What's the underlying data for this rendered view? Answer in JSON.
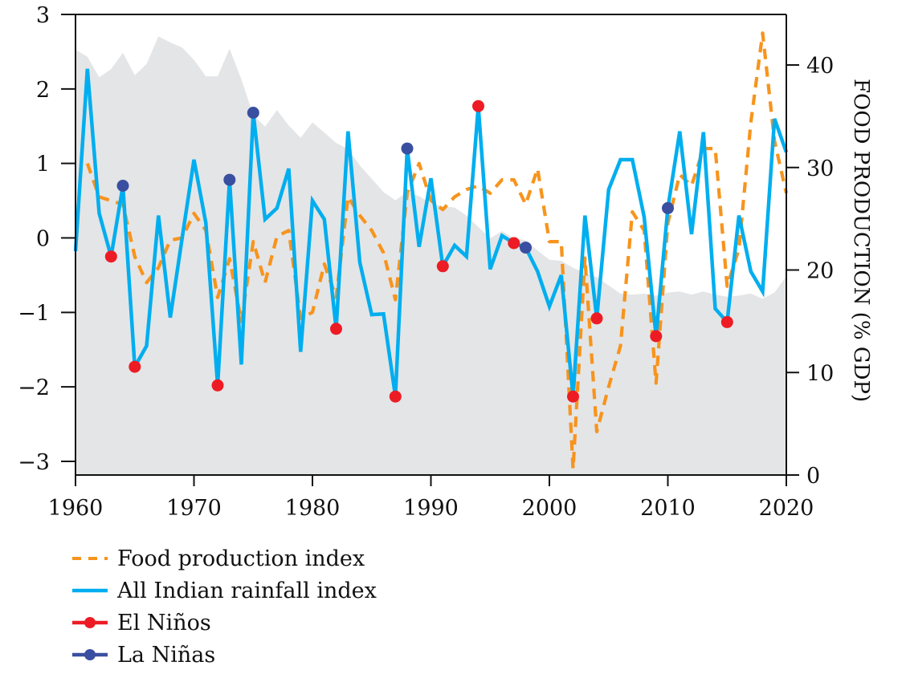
{
  "chart_data": {
    "type": "line",
    "title": "",
    "xlabel": "",
    "ylabel": "",
    "y2label": "FOOD PRODUCTION (% GDP)",
    "xlim": [
      1960,
      2020
    ],
    "ylim": [
      -3.2,
      3
    ],
    "y2lim": [
      0,
      45
    ],
    "x_ticks": [
      1960,
      1970,
      1980,
      1990,
      2000,
      2010,
      2020
    ],
    "y_ticks": [
      -3,
      -2,
      -1,
      0,
      1,
      2,
      3
    ],
    "y2_ticks": [
      0,
      10,
      20,
      30,
      40
    ],
    "x_tick_labels": [
      "1960",
      "1970",
      "1980",
      "1990",
      "2000",
      "2010",
      "2020"
    ],
    "y_tick_labels": [
      "−3",
      "−2",
      "−1",
      "0",
      "1",
      "2",
      "3"
    ],
    "y2_tick_labels": [
      "0",
      "10",
      "20",
      "30",
      "40"
    ],
    "grid": false,
    "legend_position": "bottom-left",
    "area": {
      "name": "Food production (% GDP)",
      "axis": "right",
      "color": "#e4e5e7",
      "x": [
        1960,
        1961,
        1962,
        1963,
        1964,
        1965,
        1966,
        1967,
        1968,
        1969,
        1970,
        1971,
        1972,
        1973,
        1974,
        1975,
        1976,
        1977,
        1978,
        1979,
        1980,
        1981,
        1982,
        1983,
        1984,
        1985,
        1986,
        1987,
        1988,
        1989,
        1990,
        1991,
        1992,
        1993,
        1994,
        1995,
        1996,
        1997,
        1998,
        1999,
        2000,
        2001,
        2002,
        2003,
        2004,
        2005,
        2006,
        2007,
        2008,
        2009,
        2010,
        2011,
        2012,
        2013,
        2014,
        2015,
        2016,
        2017,
        2018,
        2019,
        2020
      ],
      "values": [
        41.5,
        40.8,
        38.8,
        39.6,
        41.2,
        39.0,
        40.1,
        42.8,
        42.2,
        41.7,
        40.5,
        38.9,
        38.9,
        41.6,
        38.6,
        35.1,
        34.0,
        35.6,
        34.1,
        32.9,
        34.4,
        33.4,
        32.4,
        31.8,
        30.2,
        28.9,
        27.6,
        26.8,
        27.6,
        27.2,
        26.5,
        26.2,
        26.1,
        25.3,
        24.2,
        23.1,
        23.8,
        23.1,
        22.9,
        21.9,
        21.0,
        20.9,
        20.2,
        19.7,
        19.3,
        18.5,
        17.7,
        17.6,
        17.7,
        17.5,
        17.8,
        17.9,
        17.6,
        17.9,
        17.6,
        17.4,
        17.5,
        17.7,
        17.2,
        17.8,
        19.4
      ]
    },
    "series": [
      {
        "name": "All Indian rainfall index",
        "axis": "left",
        "color": "#00aeef",
        "style": "solid",
        "x": [
          1960,
          1961,
          1962,
          1963,
          1964,
          1965,
          1966,
          1967,
          1968,
          1969,
          1970,
          1971,
          1972,
          1973,
          1974,
          1975,
          1976,
          1977,
          1978,
          1979,
          1980,
          1981,
          1982,
          1983,
          1984,
          1985,
          1986,
          1987,
          1988,
          1989,
          1990,
          1991,
          1992,
          1993,
          1994,
          1995,
          1996,
          1997,
          1998,
          1999,
          2000,
          2001,
          2002,
          2003,
          2004,
          2005,
          2006,
          2007,
          2008,
          2009,
          2010,
          2011,
          2012,
          2013,
          2014,
          2015,
          2016,
          2017,
          2018,
          2019,
          2020
        ],
        "values": [
          -0.18,
          2.27,
          0.33,
          -0.25,
          0.7,
          -1.73,
          -1.45,
          0.3,
          -1.07,
          0.0,
          1.05,
          0.2,
          -1.98,
          0.78,
          -1.7,
          1.68,
          0.25,
          0.4,
          0.93,
          -1.53,
          0.5,
          0.25,
          -1.22,
          1.43,
          -0.33,
          -1.03,
          -1.02,
          -2.13,
          1.2,
          -0.12,
          0.8,
          -0.38,
          -0.1,
          -0.25,
          1.77,
          -0.42,
          0.03,
          -0.07,
          -0.13,
          -0.45,
          -0.92,
          -0.5,
          -2.13,
          0.3,
          -1.08,
          0.65,
          1.05,
          1.05,
          0.28,
          -1.32,
          0.4,
          1.43,
          0.05,
          1.42,
          -0.95,
          -1.13,
          0.3,
          -0.45,
          -0.72,
          1.6,
          1.15
        ]
      },
      {
        "name": "Food production index",
        "axis": "left",
        "color": "#f7941d",
        "style": "dashed",
        "x": [
          1961,
          1962,
          1963,
          1964,
          1965,
          1966,
          1967,
          1968,
          1969,
          1970,
          1971,
          1972,
          1973,
          1974,
          1975,
          1976,
          1977,
          1978,
          1979,
          1980,
          1981,
          1982,
          1983,
          1984,
          1985,
          1986,
          1987,
          1988,
          1989,
          1990,
          1991,
          1992,
          1993,
          1994,
          1995,
          1996,
          1997,
          1998,
          1999,
          2000,
          2001,
          2002,
          2003,
          2004,
          2005,
          2006,
          2007,
          2008,
          2009,
          2010,
          2011,
          2012,
          2013,
          2014,
          2015,
          2016,
          2017,
          2018,
          2019,
          2020
        ],
        "values": [
          1.0,
          0.55,
          0.5,
          0.45,
          -0.25,
          -0.6,
          -0.4,
          -0.03,
          0.0,
          0.33,
          0.1,
          -0.8,
          -0.28,
          -1.12,
          -0.05,
          -0.6,
          0.02,
          0.1,
          -1.08,
          -1.0,
          -0.35,
          -0.8,
          0.55,
          0.3,
          0.1,
          -0.2,
          -0.83,
          0.6,
          1.0,
          0.5,
          0.38,
          0.55,
          0.65,
          0.7,
          0.6,
          0.78,
          0.78,
          0.45,
          0.93,
          -0.05,
          -0.05,
          -3.1,
          -0.27,
          -2.6,
          -2.0,
          -1.45,
          0.35,
          0.1,
          -1.95,
          0.2,
          0.85,
          0.7,
          1.2,
          1.2,
          -0.65,
          -0.15,
          1.55,
          2.75,
          1.3,
          0.6
        ]
      }
    ],
    "markers": [
      {
        "name": "El Niños",
        "color": "#ed1c24",
        "x": [
          1963,
          1965,
          1972,
          1982,
          1987,
          1991,
          1994,
          1997,
          2002,
          2004,
          2009,
          2015
        ],
        "values": [
          -0.25,
          -1.73,
          -1.98,
          -1.22,
          -2.13,
          -0.38,
          1.77,
          -0.07,
          -2.13,
          -1.08,
          -1.32,
          -1.13
        ]
      },
      {
        "name": "La Niñas",
        "color": "#3a4fa0",
        "x": [
          1964,
          1973,
          1975,
          1988,
          1998,
          2010
        ],
        "values": [
          0.7,
          0.78,
          1.68,
          1.2,
          -0.13,
          0.4
        ]
      }
    ]
  },
  "legend": {
    "items": [
      {
        "label": "Food production index",
        "color": "#f7941d",
        "style": "dashed"
      },
      {
        "label": "All Indian rainfall index",
        "color": "#00aeef",
        "style": "solid"
      },
      {
        "label": "El Niños",
        "color": "#ed1c24",
        "style": "marker"
      },
      {
        "label": "La Niñas",
        "color": "#3a4fa0",
        "style": "marker"
      }
    ]
  }
}
